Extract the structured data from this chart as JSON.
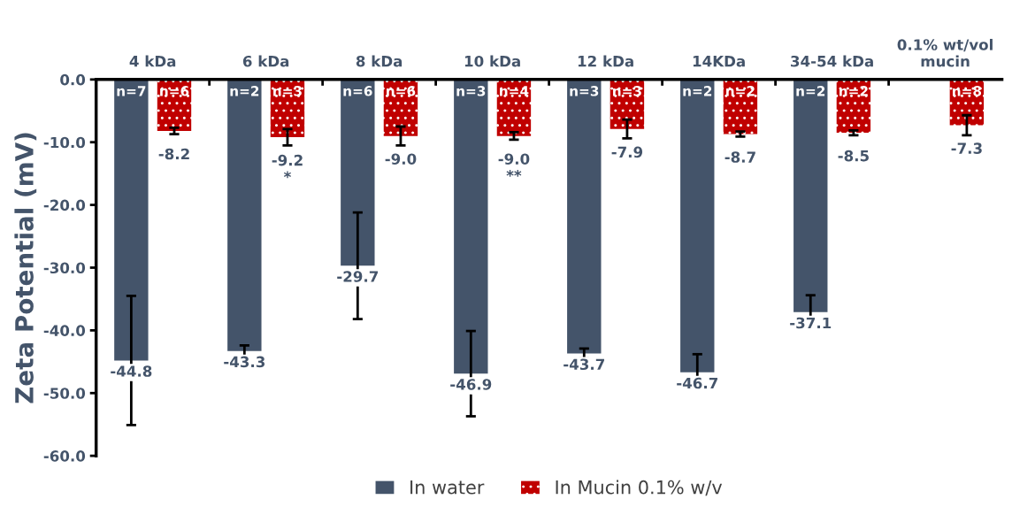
{
  "chart_data": {
    "type": "bar",
    "ylabel": "Zeta Potential (mV)",
    "categories": [
      "4 kDa",
      "6 kDa",
      "8 kDa",
      "10 kDa",
      "12 kDa",
      "14KDa",
      "34-54 kDa",
      "0.1% wt/vol\nmucin"
    ],
    "series": [
      {
        "name": "In water",
        "color": "#44546a",
        "values": [
          -44.8,
          -43.3,
          -29.7,
          -46.9,
          -43.7,
          -46.7,
          -37.1,
          null
        ],
        "value_labels": [
          "-44.8",
          "-43.3",
          "-29.7",
          "-46.9",
          "-43.7",
          "-46.7",
          "-37.1",
          null
        ],
        "errors": [
          10.3,
          0.9,
          8.5,
          6.8,
          0.8,
          2.9,
          2.7,
          null
        ]
      },
      {
        "name": "In Mucin 0.1% w/v",
        "color": "#c00000",
        "values": [
          -8.2,
          -9.2,
          -9.0,
          -9.0,
          -7.9,
          -8.7,
          -8.5,
          -7.3
        ],
        "value_labels": [
          "-8.2",
          "-9.2\n*",
          "-9.0",
          "-9.0\n**",
          "-7.9",
          "-8.7",
          "-8.5",
          "-7.3"
        ],
        "errors": [
          0.5,
          1.3,
          1.5,
          0.6,
          1.5,
          0.4,
          0.4,
          1.6
        ]
      }
    ],
    "ylim": [
      -60,
      0
    ],
    "yticks": [
      {
        "value": -60,
        "label": "-60.0"
      },
      {
        "value": -50,
        "label": "-50.0"
      },
      {
        "value": -40,
        "label": "-40.0"
      },
      {
        "value": -30,
        "label": "-30.0"
      },
      {
        "value": -20,
        "label": "-20.0"
      },
      {
        "value": -10,
        "label": "-10.0"
      },
      {
        "value": 0,
        "label": "0.0"
      }
    ],
    "grid": false,
    "legend": "bottom",
    "annotations": [
      "n=7",
      "n=6",
      "n=2",
      "n=3",
      "n=6",
      "n=6",
      "n=3",
      "n=4",
      "n=3",
      "n=3",
      "n=2",
      "n=2",
      "n=2",
      "n=2",
      "n=8"
    ]
  }
}
